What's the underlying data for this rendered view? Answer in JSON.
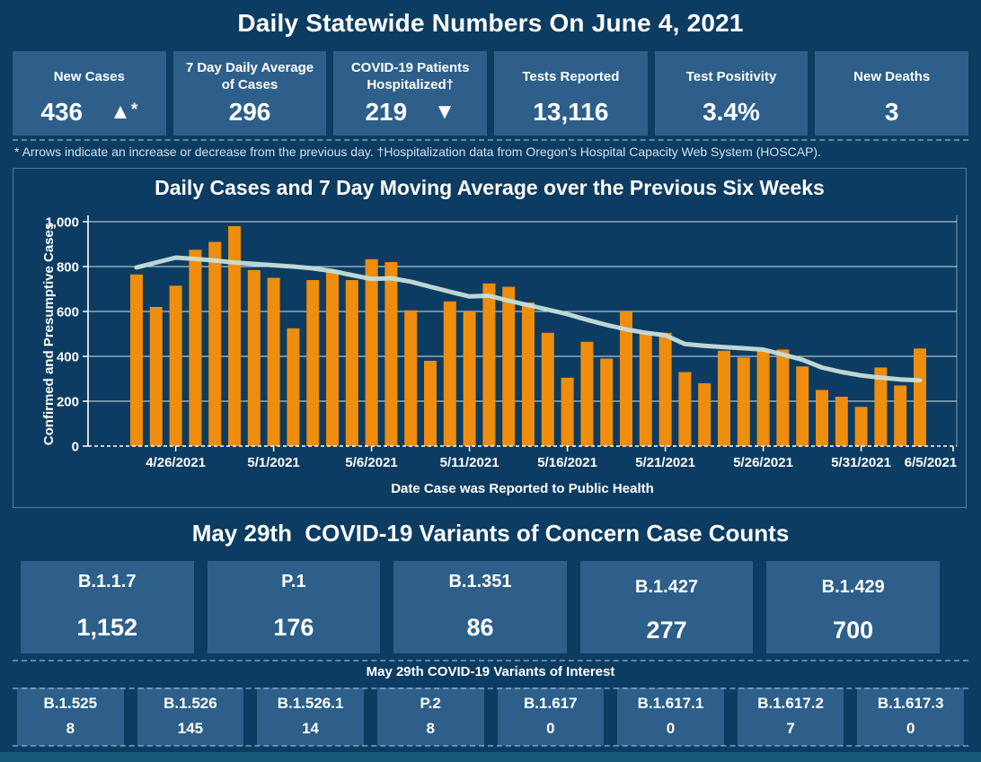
{
  "header": {
    "title": "Daily Statewide Numbers On June 4, 2021"
  },
  "kpis": [
    {
      "label": "New Cases",
      "value": "436",
      "arrow_glyph": "▲",
      "arrow_name": "increase-arrow-icon",
      "arrow_note": "*"
    },
    {
      "label": "7 Day Daily Average of Cases",
      "value": "296"
    },
    {
      "label": "COVID-19 Patients Hospitalized†",
      "value": "219",
      "arrow_glyph": "▼",
      "arrow_name": "decrease-arrow-icon",
      "arrow_note": ""
    },
    {
      "label": "Tests Reported",
      "value": "13,116"
    },
    {
      "label": "Test Positivity",
      "value": "3.4%"
    },
    {
      "label": "New Deaths",
      "value": "3"
    }
  ],
  "footnote": "* Arrows indicate an increase or decrease from the previous day. †Hospitalization data from Oregon’s Hospital Capacity Web System (HOSCAP).",
  "chart_data": {
    "type": "bar",
    "title": "Daily Cases and 7 Day Moving Average over the Previous Six Weeks",
    "xlabel": "Date Case was Reported to Public Health",
    "ylabel": "Confirmed and Presumptive Cases",
    "ylim": [
      0,
      1000
    ],
    "yticks": [
      0,
      200,
      400,
      600,
      800,
      1000
    ],
    "xticks": [
      "4/26/2021",
      "5/1/2021",
      "5/6/2021",
      "5/11/2021",
      "5/16/2021",
      "5/21/2021",
      "5/26/2021",
      "5/31/2021",
      "6/5/2021"
    ],
    "grid": true,
    "legend": "none",
    "dates": [
      "4/24/2021",
      "4/25/2021",
      "4/26/2021",
      "4/27/2021",
      "4/28/2021",
      "4/29/2021",
      "4/30/2021",
      "5/1/2021",
      "5/2/2021",
      "5/3/2021",
      "5/4/2021",
      "5/5/2021",
      "5/6/2021",
      "5/7/2021",
      "5/8/2021",
      "5/9/2021",
      "5/10/2021",
      "5/11/2021",
      "5/12/2021",
      "5/13/2021",
      "5/14/2021",
      "5/15/2021",
      "5/16/2021",
      "5/17/2021",
      "5/18/2021",
      "5/19/2021",
      "5/20/2021",
      "5/21/2021",
      "5/22/2021",
      "5/23/2021",
      "5/24/2021",
      "5/25/2021",
      "5/26/2021",
      "5/27/2021",
      "5/28/2021",
      "5/29/2021",
      "5/30/2021",
      "5/31/2021",
      "6/1/2021",
      "6/2/2021",
      "6/3/2021"
    ],
    "series": [
      {
        "name": "Daily Cases",
        "type": "bar",
        "color": "#ee8d0e",
        "values": [
          765,
          620,
          715,
          875,
          910,
          980,
          785,
          750,
          525,
          740,
          785,
          740,
          833,
          820,
          605,
          380,
          645,
          600,
          725,
          710,
          640,
          505,
          305,
          465,
          390,
          600,
          505,
          505,
          330,
          280,
          425,
          395,
          425,
          430,
          355,
          250,
          220,
          175,
          350,
          270,
          435
        ]
      },
      {
        "name": "7 Day Moving Average",
        "type": "line",
        "color": "#c8ded9",
        "values": [
          796,
          818,
          840,
          834,
          827,
          818,
          812,
          806,
          800,
          792,
          780,
          762,
          745,
          748,
          733,
          710,
          688,
          667,
          670,
          648,
          628,
          608,
          588,
          563,
          540,
          520,
          505,
          494,
          455,
          447,
          441,
          436,
          430,
          408,
          385,
          350,
          330,
          315,
          305,
          297,
          293
        ]
      }
    ]
  },
  "variants_of_concern": {
    "title": "May 29th  COVID-19 Variants of Concern Case Counts",
    "cards": [
      {
        "label": "B.1.1.7",
        "value": "1,152"
      },
      {
        "label": "P.1",
        "value": "176"
      },
      {
        "label": "B.1.351",
        "value": "86"
      },
      {
        "label": "B.1.427",
        "value": "277"
      },
      {
        "label": "B.1.429",
        "value": "700"
      }
    ]
  },
  "variants_of_interest": {
    "title": "May 29th COVID-19 Variants of Interest",
    "cards": [
      {
        "label": "B.1.525",
        "value": "8"
      },
      {
        "label": "B.1.526",
        "value": "145"
      },
      {
        "label": "B.1.526.1",
        "value": "14"
      },
      {
        "label": "P.2",
        "value": "8"
      },
      {
        "label": "B.1.617",
        "value": "0"
      },
      {
        "label": "B.1.617.1",
        "value": "0"
      },
      {
        "label": "B.1.617.2",
        "value": "7"
      },
      {
        "label": "B.1.617.3",
        "value": "0"
      }
    ]
  },
  "colors": {
    "background": "#0c3c62",
    "card": "#2d5f8a",
    "bar_orange": "#ee8d0e",
    "avg_line": "#c8ded9",
    "bottom_strip": "#17587a",
    "footnote_text": "#cfe2ef"
  }
}
